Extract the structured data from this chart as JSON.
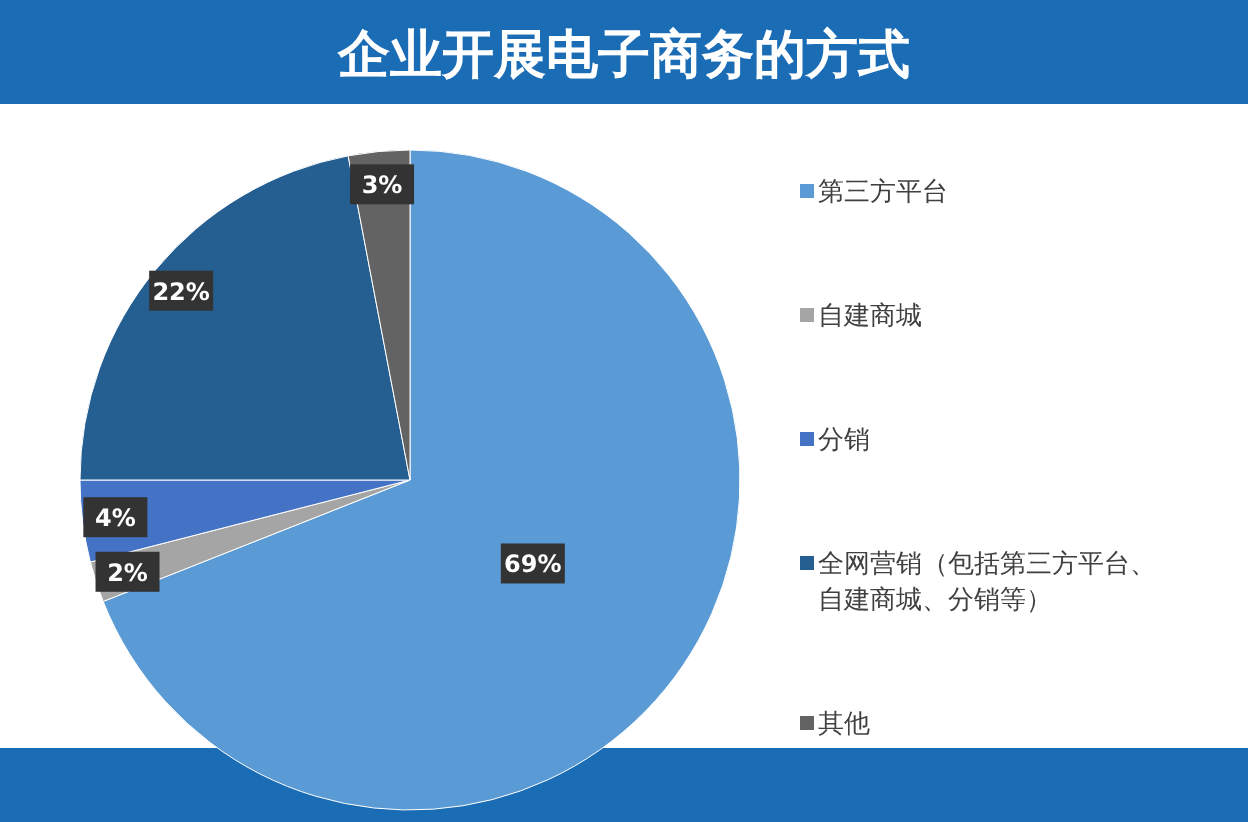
{
  "chart_data": {
    "type": "pie",
    "title": "企业开展电子商务的方式",
    "categories": [
      "第三方平台",
      "自建商城",
      "分销",
      "全网营销（包括第三方平台、自建商城、分销等）",
      "其他"
    ],
    "values": [
      69,
      2,
      4,
      22,
      3
    ],
    "colors": [
      "#5b9bd5",
      "#a5a5a5",
      "#4472c4",
      "#255e91",
      "#636363"
    ],
    "value_labels": [
      "69%",
      "2%",
      "4%",
      "22%",
      "3%"
    ],
    "legend": "right"
  }
}
